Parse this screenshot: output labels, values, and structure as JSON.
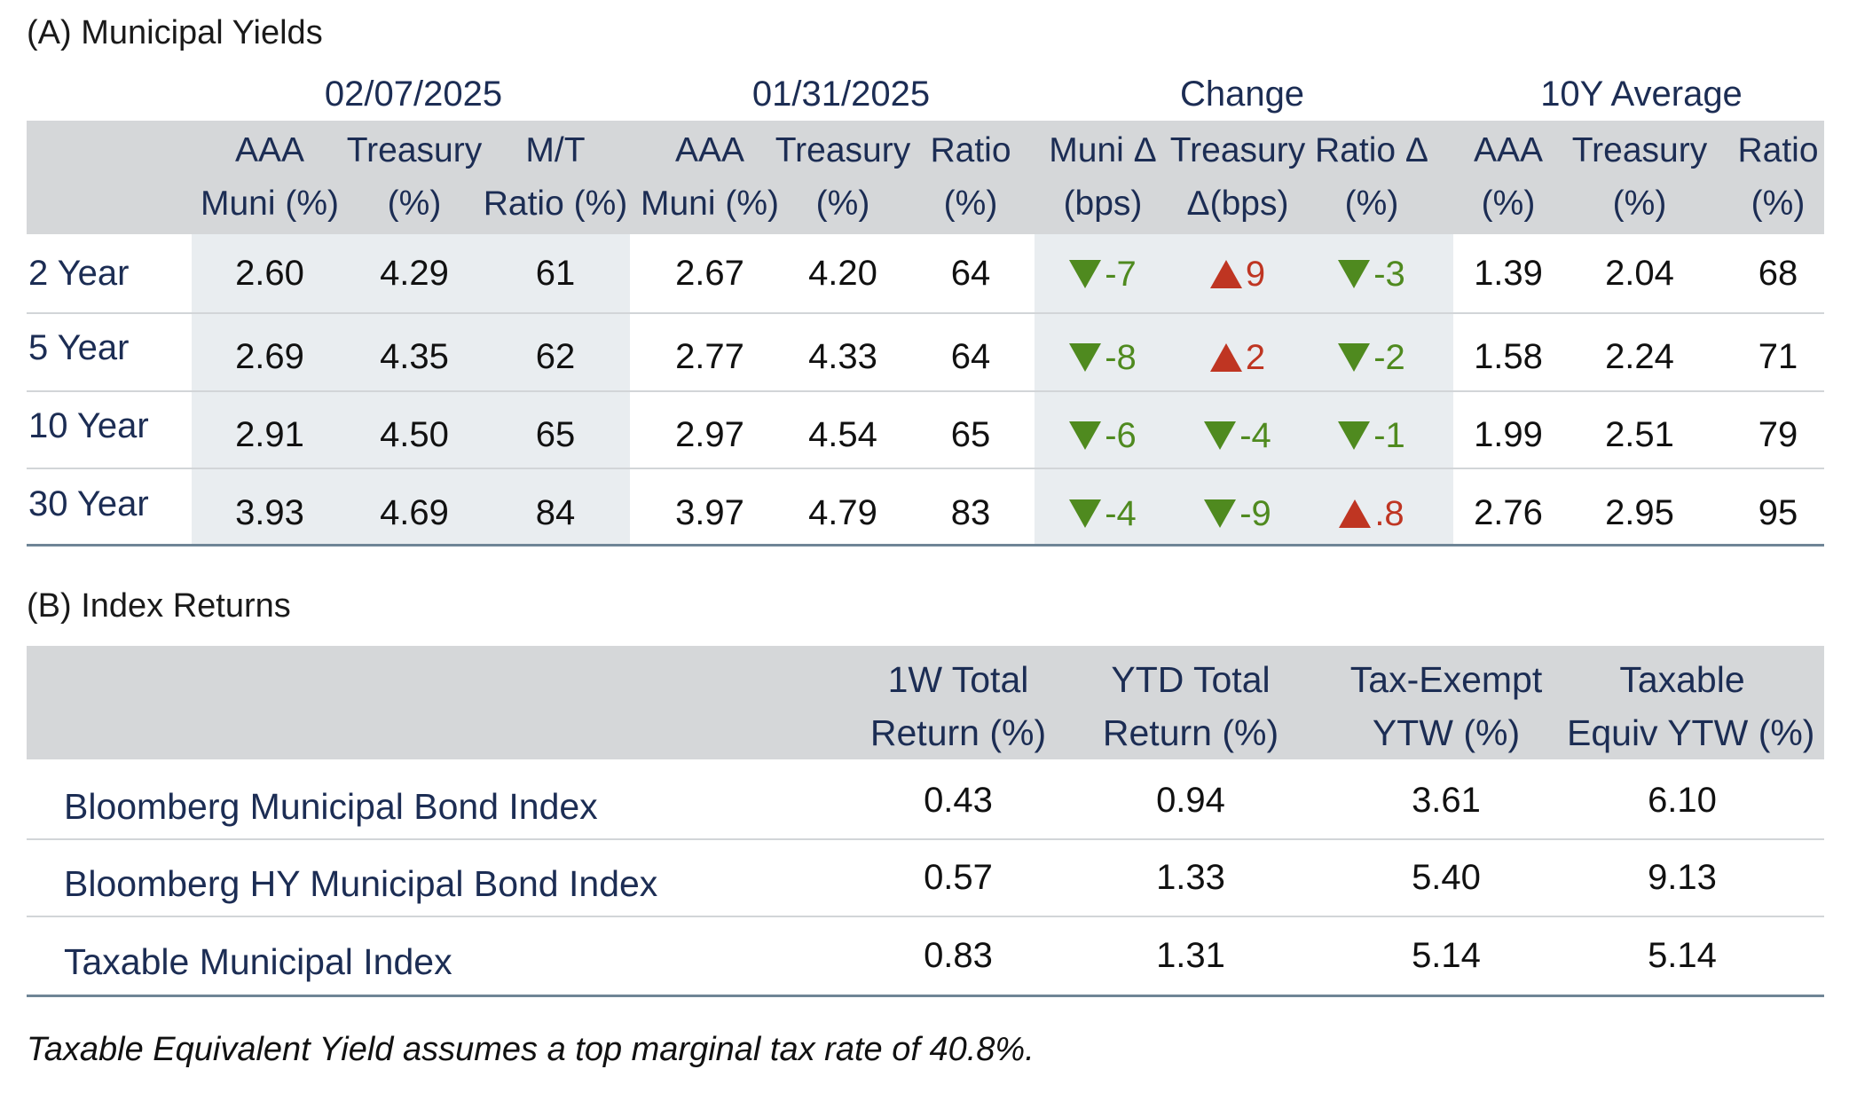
{
  "section_a": {
    "title": "(A) Municipal Yields",
    "groups": [
      "02/07/2025",
      "01/31/2025",
      "Change",
      "10Y Average"
    ],
    "columns": [
      [
        "AAA",
        "Muni (%)"
      ],
      [
        "Treasury",
        "(%)"
      ],
      [
        "M/T",
        "Ratio (%)"
      ],
      [
        "AAA",
        "Muni (%)"
      ],
      [
        "Treasury",
        "(%)"
      ],
      [
        "Ratio",
        "(%)"
      ],
      [
        "Muni Δ",
        "(bps)"
      ],
      [
        "Treasury",
        "Δ(bps)"
      ],
      [
        "Ratio Δ",
        "(%)"
      ],
      [
        "AAA",
        "(%)"
      ],
      [
        "Treasury",
        "(%)"
      ],
      [
        "Ratio",
        "(%)"
      ]
    ],
    "rows": [
      {
        "label": "2 Year",
        "current": [
          "2.60",
          "4.29",
          "61"
        ],
        "prior": [
          "2.67",
          "4.20",
          "64"
        ],
        "change": [
          {
            "dir": "down",
            "value": "-7"
          },
          {
            "dir": "up",
            "value": "9"
          },
          {
            "dir": "down",
            "value": "-3"
          }
        ],
        "avg": [
          "1.39",
          "2.04",
          "68"
        ]
      },
      {
        "label": "5 Year",
        "current": [
          "2.69",
          "4.35",
          "62"
        ],
        "prior": [
          "2.77",
          "4.33",
          "64"
        ],
        "change": [
          {
            "dir": "down",
            "value": "-8"
          },
          {
            "dir": "up",
            "value": "2"
          },
          {
            "dir": "down",
            "value": "-2"
          }
        ],
        "avg": [
          "1.58",
          "2.24",
          "71"
        ]
      },
      {
        "label": "10 Year",
        "current": [
          "2.91",
          "4.50",
          "65"
        ],
        "prior": [
          "2.97",
          "4.54",
          "65"
        ],
        "change": [
          {
            "dir": "down",
            "value": "-6"
          },
          {
            "dir": "down",
            "value": "-4"
          },
          {
            "dir": "down",
            "value": "-1"
          }
        ],
        "avg": [
          "1.99",
          "2.51",
          "79"
        ]
      },
      {
        "label": "30 Year",
        "current": [
          "3.93",
          "4.69",
          "84"
        ],
        "prior": [
          "3.97",
          "4.79",
          "83"
        ],
        "change": [
          {
            "dir": "down",
            "value": "-4"
          },
          {
            "dir": "down",
            "value": "-9"
          },
          {
            "dir": "up",
            "value": ".8"
          }
        ],
        "avg": [
          "2.76",
          "2.95",
          "95"
        ]
      }
    ]
  },
  "section_b": {
    "title": "(B) Index Returns",
    "columns": [
      [
        "1W Total",
        "Return (%)"
      ],
      [
        "YTD Total",
        "Return (%)"
      ],
      [
        "Tax-Exempt",
        "YTW (%)"
      ],
      [
        "Taxable",
        "Equiv YTW (%)"
      ]
    ],
    "rows": [
      {
        "label": "Bloomberg Municipal Bond Index",
        "values": [
          "0.43",
          "0.94",
          "3.61",
          "6.10"
        ]
      },
      {
        "label": "Bloomberg HY Municipal Bond Index",
        "values": [
          "0.57",
          "1.33",
          "5.40",
          "9.13"
        ]
      },
      {
        "label": "Taxable Municipal Index",
        "values": [
          "0.83",
          "1.31",
          "5.14",
          "5.14"
        ]
      }
    ]
  },
  "footnote": "Taxable Equivalent Yield assumes a top marginal tax rate of 40.8%.",
  "colors": {
    "header_band": "#d5d7d9",
    "shaded_column": "#e9edf0",
    "label_navy": "#1c2d54",
    "down_green": "#4f8a1f",
    "up_red": "#bf3522"
  },
  "icons": {
    "down": "triangle-down-icon",
    "up": "triangle-up-icon"
  }
}
